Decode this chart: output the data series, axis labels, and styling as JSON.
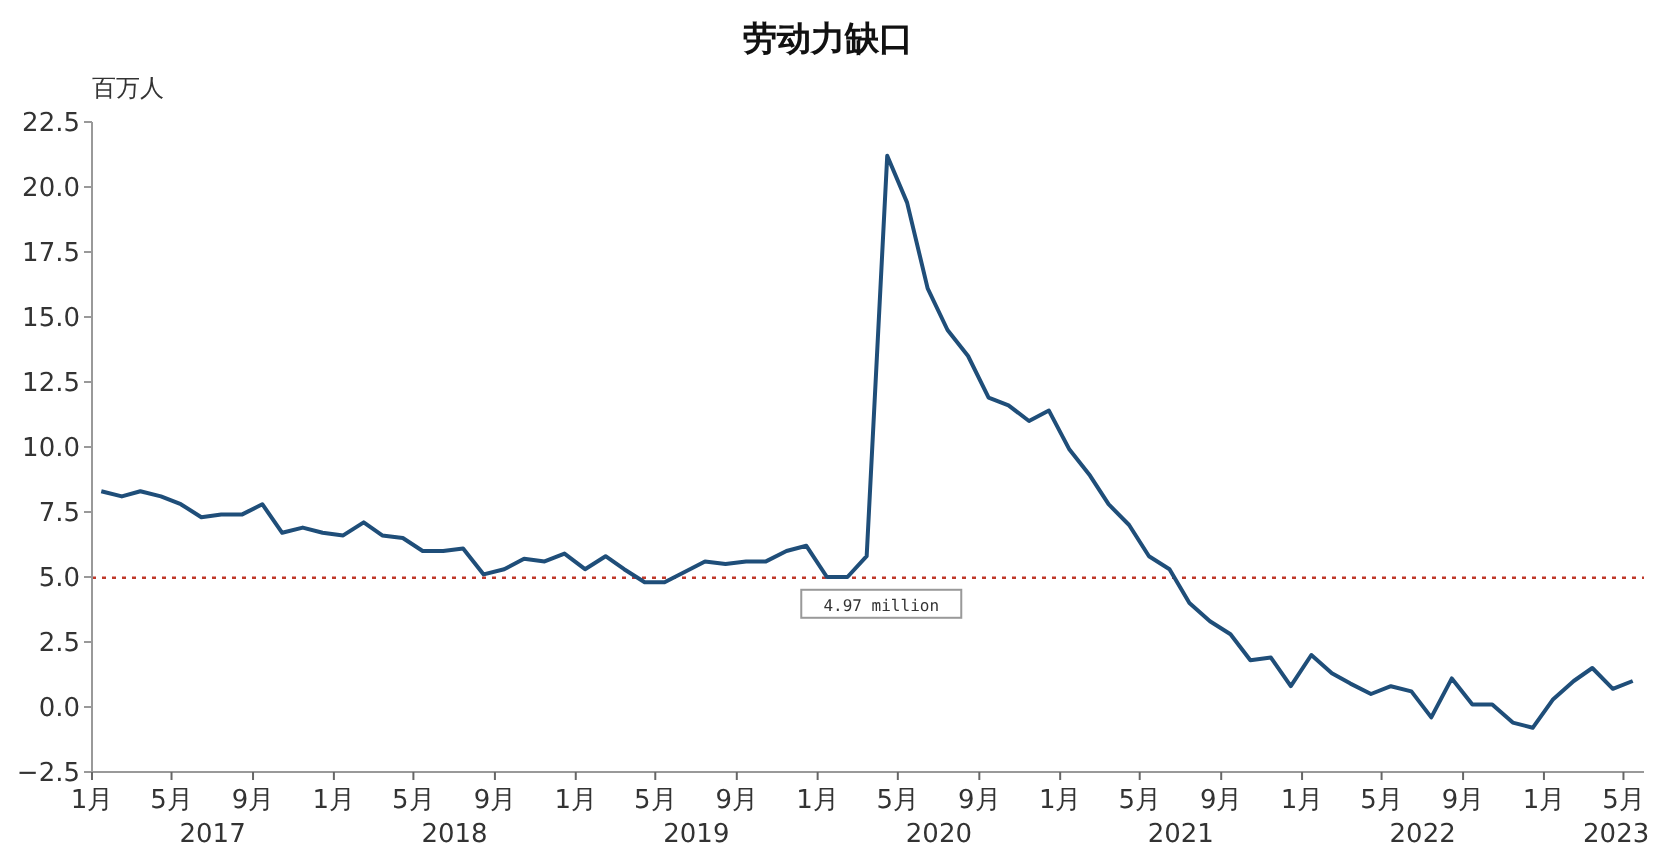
{
  "chart_data": {
    "type": "line",
    "title": "劳动力缺口",
    "ylabel": "百万人",
    "x": [
      "2017-01-15",
      "2017-02-15",
      "2017-03-15",
      "2017-04-15",
      "2017-05-15",
      "2017-06-15",
      "2017-07-15",
      "2017-08-15",
      "2017-09-15",
      "2017-10-15",
      "2017-11-15",
      "2017-12-15",
      "2018-01-15",
      "2018-02-15",
      "2018-03-15",
      "2018-04-15",
      "2018-05-15",
      "2018-06-15",
      "2018-07-15",
      "2018-08-15",
      "2018-09-15",
      "2018-10-15",
      "2018-11-15",
      "2018-12-15",
      "2019-01-15",
      "2019-02-15",
      "2019-03-15",
      "2019-04-15",
      "2019-05-15",
      "2019-06-15",
      "2019-07-15",
      "2019-08-15",
      "2019-09-15",
      "2019-10-15",
      "2019-11-15",
      "2019-12-15",
      "2020-01-15",
      "2020-02-15",
      "2020-03-15",
      "2020-04-15",
      "2020-05-15",
      "2020-06-15",
      "2020-07-15",
      "2020-08-15",
      "2020-09-15",
      "2020-10-15",
      "2020-11-15",
      "2020-12-15",
      "2021-01-15",
      "2021-02-15",
      "2021-03-15",
      "2021-04-15",
      "2021-05-15",
      "2021-06-15",
      "2021-07-15",
      "2021-08-15",
      "2021-09-15",
      "2021-10-15",
      "2021-11-15",
      "2021-12-15",
      "2022-01-15",
      "2022-02-15",
      "2022-03-15",
      "2022-04-15",
      "2022-05-15",
      "2022-06-15",
      "2022-07-15",
      "2022-08-15",
      "2022-09-15",
      "2022-10-15",
      "2022-11-15",
      "2022-12-15",
      "2023-01-15",
      "2023-02-15",
      "2023-03-15",
      "2023-04-15",
      "2023-05-15"
    ],
    "series": [
      {
        "color": "#1f4e79",
        "values": [
          8.3,
          8.1,
          8.3,
          8.1,
          7.8,
          7.3,
          7.4,
          7.4,
          7.8,
          6.7,
          6.9,
          6.7,
          6.6,
          7.1,
          6.6,
          6.5,
          6.0,
          6.0,
          6.1,
          5.1,
          5.3,
          5.7,
          5.6,
          5.9,
          5.3,
          5.8,
          5.3,
          4.8,
          4.8,
          5.2,
          5.6,
          5.5,
          5.6,
          5.6,
          6.0,
          6.2,
          5.0,
          5.0,
          5.8,
          21.2,
          19.4,
          16.1,
          14.5,
          13.5,
          11.9,
          11.6,
          11.0,
          11.4,
          9.9,
          8.9,
          7.8,
          7.0,
          5.8,
          5.3,
          4.0,
          3.3,
          2.8,
          1.8,
          1.9,
          0.8,
          2.0,
          1.3,
          0.9,
          0.5,
          0.8,
          0.6,
          -0.4,
          1.1,
          0.1,
          0.1,
          -0.6,
          -0.8,
          0.3,
          1.0,
          1.5,
          0.7,
          1.0
        ]
      }
    ],
    "xlim": [
      "2017-01-01",
      "2023-06-01"
    ],
    "xticks": [
      {
        "value": "2017-01-01",
        "label": "1月"
      },
      {
        "value": "2017-05-01",
        "label": "5月"
      },
      {
        "value": "2017-09-01",
        "label": "9月"
      },
      {
        "value": "2018-01-01",
        "label": "1月"
      },
      {
        "value": "2018-05-01",
        "label": "5月"
      },
      {
        "value": "2018-09-01",
        "label": "9月"
      },
      {
        "value": "2019-01-01",
        "label": "1月"
      },
      {
        "value": "2019-05-01",
        "label": "5月"
      },
      {
        "value": "2019-09-01",
        "label": "9月"
      },
      {
        "value": "2020-01-01",
        "label": "1月"
      },
      {
        "value": "2020-05-01",
        "label": "5月"
      },
      {
        "value": "2020-09-01",
        "label": "9月"
      },
      {
        "value": "2021-01-01",
        "label": "1月"
      },
      {
        "value": "2021-05-01",
        "label": "5月"
      },
      {
        "value": "2021-09-01",
        "label": "9月"
      },
      {
        "value": "2022-01-01",
        "label": "1月"
      },
      {
        "value": "2022-05-01",
        "label": "5月"
      },
      {
        "value": "2022-09-01",
        "label": "9月"
      },
      {
        "value": "2023-01-01",
        "label": "1月"
      },
      {
        "value": "2023-05-01",
        "label": "5月"
      }
    ],
    "x2lim": [
      "2017-01-01",
      "2023-06-01"
    ],
    "x2ticks": [
      {
        "value": "2017-07-02",
        "label": "2017"
      },
      {
        "value": "2018-07-02",
        "label": "2018"
      },
      {
        "value": "2019-07-02",
        "label": "2019"
      },
      {
        "value": "2020-07-02",
        "label": "2020"
      },
      {
        "value": "2021-07-02",
        "label": "2021"
      },
      {
        "value": "2022-07-02",
        "label": "2022"
      },
      {
        "value": "2023-04-20",
        "label": "2023"
      }
    ],
    "ylim": [
      -2.5,
      22.5
    ],
    "yticks": [
      {
        "value": -2.5,
        "label": "−2.5"
      },
      {
        "value": 0,
        "label": "0.0"
      },
      2.5,
      {
        "value": 5,
        "label": "5.0"
      },
      7.5,
      {
        "value": 10,
        "label": "10.0"
      },
      12.5,
      {
        "value": 15,
        "label": "15.0"
      },
      17.5,
      {
        "value": 20,
        "label": "20.0"
      },
      22.5
    ],
    "ref_lines": [
      {
        "axis": "y",
        "value": 4.97,
        "label": "4.97 million",
        "color": "#c0392b",
        "line_style": "dotted"
      }
    ],
    "grid": false,
    "legend": false
  }
}
